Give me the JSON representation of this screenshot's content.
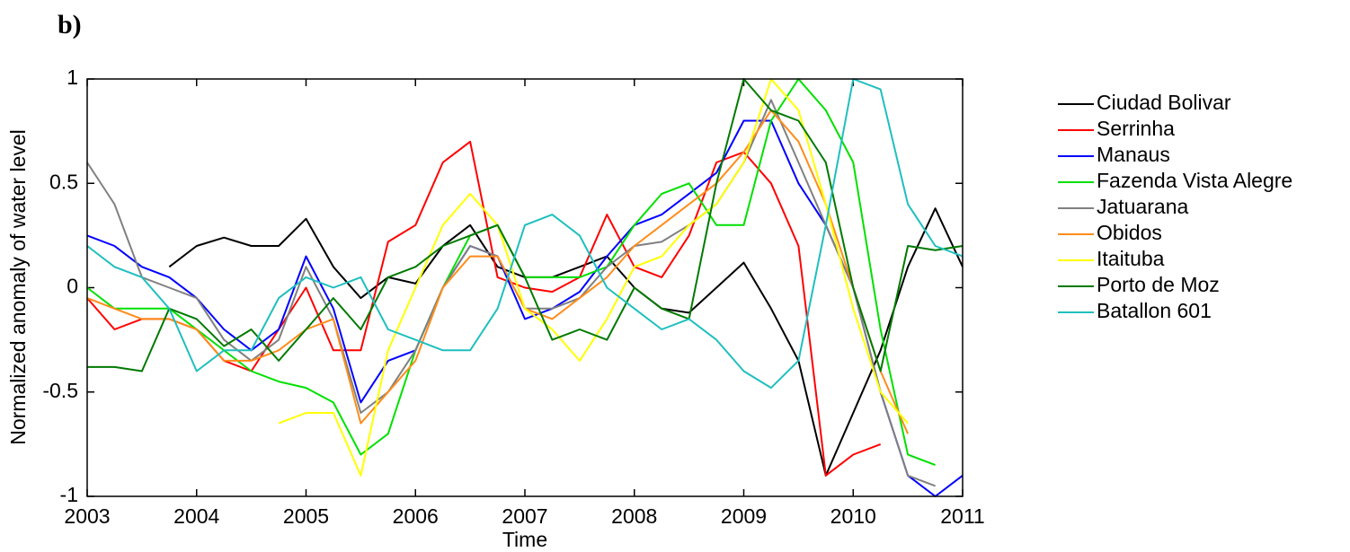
{
  "chart_data": {
    "type": "line",
    "title": "b)",
    "xlabel": "Time",
    "ylabel": "Normalized anomaly of water level",
    "x": [
      2003,
      2003.25,
      2003.5,
      2003.75,
      2004,
      2004.25,
      2004.5,
      2004.75,
      2005,
      2005.25,
      2005.5,
      2005.75,
      2006,
      2006.25,
      2006.5,
      2006.75,
      2007,
      2007.25,
      2007.5,
      2007.75,
      2008,
      2008.25,
      2008.5,
      2008.75,
      2009,
      2009.25,
      2009.5,
      2009.75,
      2010,
      2010.25,
      2010.5,
      2010.75,
      2011
    ],
    "xlim": [
      2003,
      2011
    ],
    "xticks": [
      2003,
      2004,
      2005,
      2006,
      2007,
      2008,
      2009,
      2010,
      2011
    ],
    "ylim": [
      -1,
      1
    ],
    "yticks": [
      -1,
      -0.5,
      0,
      0.5,
      1
    ],
    "grid": false,
    "legend": "outside-right",
    "series": [
      {
        "name": "Ciudad Bolivar",
        "color": "#000000",
        "values": [
          null,
          null,
          null,
          0.1,
          0.2,
          0.24,
          0.2,
          0.2,
          0.33,
          0.1,
          -0.05,
          0.05,
          0.02,
          0.2,
          0.3,
          0.1,
          0.05,
          0.05,
          0.1,
          0.15,
          0,
          -0.1,
          -0.12,
          0,
          0.12,
          -0.1,
          -0.35,
          -0.9,
          -0.6,
          -0.3,
          0.1,
          0.38,
          0.1
        ]
      },
      {
        "name": "Serrinha",
        "color": "#ff0000",
        "values": [
          -0.05,
          -0.2,
          -0.15,
          -0.15,
          -0.2,
          -0.35,
          -0.4,
          -0.2,
          0,
          -0.3,
          -0.3,
          0.22,
          0.3,
          0.6,
          0.7,
          0.05,
          0,
          -0.02,
          0.05,
          0.35,
          0.1,
          0.05,
          0.25,
          0.6,
          0.65,
          0.5,
          0.2,
          -0.9,
          -0.8,
          -0.75,
          null,
          null,
          null
        ]
      },
      {
        "name": "Manaus",
        "color": "#0000ff",
        "values": [
          0.25,
          0.2,
          0.1,
          0.05,
          -0.05,
          -0.2,
          -0.3,
          -0.2,
          0.15,
          -0.1,
          -0.55,
          -0.35,
          -0.3,
          0,
          0.2,
          0.15,
          -0.15,
          -0.1,
          -0.02,
          0.15,
          0.3,
          0.35,
          0.45,
          0.55,
          0.8,
          0.8,
          0.5,
          0.3,
          0,
          -0.5,
          -0.9,
          -1,
          -0.9
        ]
      },
      {
        "name": "Fazenda Vista Alegre",
        "color": "#00e000",
        "values": [
          0,
          -0.1,
          -0.1,
          -0.1,
          -0.2,
          -0.3,
          -0.4,
          -0.45,
          -0.48,
          -0.55,
          -0.8,
          -0.7,
          -0.3,
          0,
          0.25,
          0.3,
          0.05,
          0.05,
          0.05,
          0.1,
          0.3,
          0.45,
          0.5,
          0.3,
          0.3,
          0.8,
          1,
          0.85,
          0.6,
          -0.2,
          -0.8,
          -0.85,
          null
        ]
      },
      {
        "name": "Jatuarana",
        "color": "#808080",
        "values": [
          0.6,
          0.4,
          0.05,
          0,
          -0.05,
          -0.25,
          -0.35,
          -0.25,
          0.1,
          -0.15,
          -0.6,
          -0.5,
          -0.3,
          0,
          0.2,
          0.15,
          -0.1,
          -0.1,
          -0.05,
          0.1,
          0.2,
          0.22,
          0.3,
          0.4,
          0.6,
          0.9,
          0.6,
          0.3,
          0,
          -0.5,
          -0.9,
          -0.95,
          null
        ]
      },
      {
        "name": "Obidos",
        "color": "#ff8c1a",
        "values": [
          -0.05,
          -0.1,
          -0.15,
          -0.15,
          -0.2,
          -0.35,
          -0.35,
          -0.3,
          -0.2,
          -0.15,
          -0.65,
          -0.5,
          -0.35,
          0,
          0.15,
          0.15,
          -0.1,
          -0.15,
          -0.05,
          0.05,
          0.2,
          0.3,
          0.4,
          0.5,
          0.65,
          0.85,
          0.7,
          0.4,
          0,
          -0.4,
          -0.7,
          null,
          null
        ]
      },
      {
        "name": "Itaituba",
        "color": "#ffff00",
        "values": [
          null,
          null,
          null,
          null,
          null,
          null,
          null,
          -0.65,
          -0.6,
          -0.6,
          -0.9,
          -0.3,
          0,
          0.3,
          0.45,
          0.3,
          -0.1,
          -0.2,
          -0.35,
          -0.15,
          0.1,
          0.15,
          0.3,
          0.4,
          0.6,
          1,
          0.85,
          0.4,
          -0.1,
          -0.5,
          -0.65,
          null,
          null
        ]
      },
      {
        "name": "Porto de Moz",
        "color": "#007a00",
        "values": [
          -0.38,
          -0.38,
          -0.4,
          -0.1,
          -0.15,
          -0.28,
          -0.2,
          -0.35,
          -0.2,
          -0.05,
          -0.2,
          0.05,
          0.1,
          0.2,
          0.25,
          0.3,
          0.05,
          -0.25,
          -0.2,
          -0.25,
          0,
          -0.1,
          -0.15,
          0.5,
          1,
          0.85,
          0.8,
          0.6,
          0,
          -0.4,
          0.2,
          0.18,
          0.2
        ]
      },
      {
        "name": "Batallon 601",
        "color": "#1fbfbf",
        "values": [
          0.2,
          0.1,
          0.05,
          -0.1,
          -0.4,
          -0.3,
          -0.3,
          -0.05,
          0.05,
          0,
          0.05,
          -0.2,
          -0.25,
          -0.3,
          -0.3,
          -0.1,
          0.3,
          0.35,
          0.25,
          0,
          -0.1,
          -0.2,
          -0.15,
          -0.25,
          -0.4,
          -0.48,
          -0.35,
          0.3,
          1,
          0.95,
          0.4,
          0.2,
          0.15
        ]
      }
    ]
  }
}
